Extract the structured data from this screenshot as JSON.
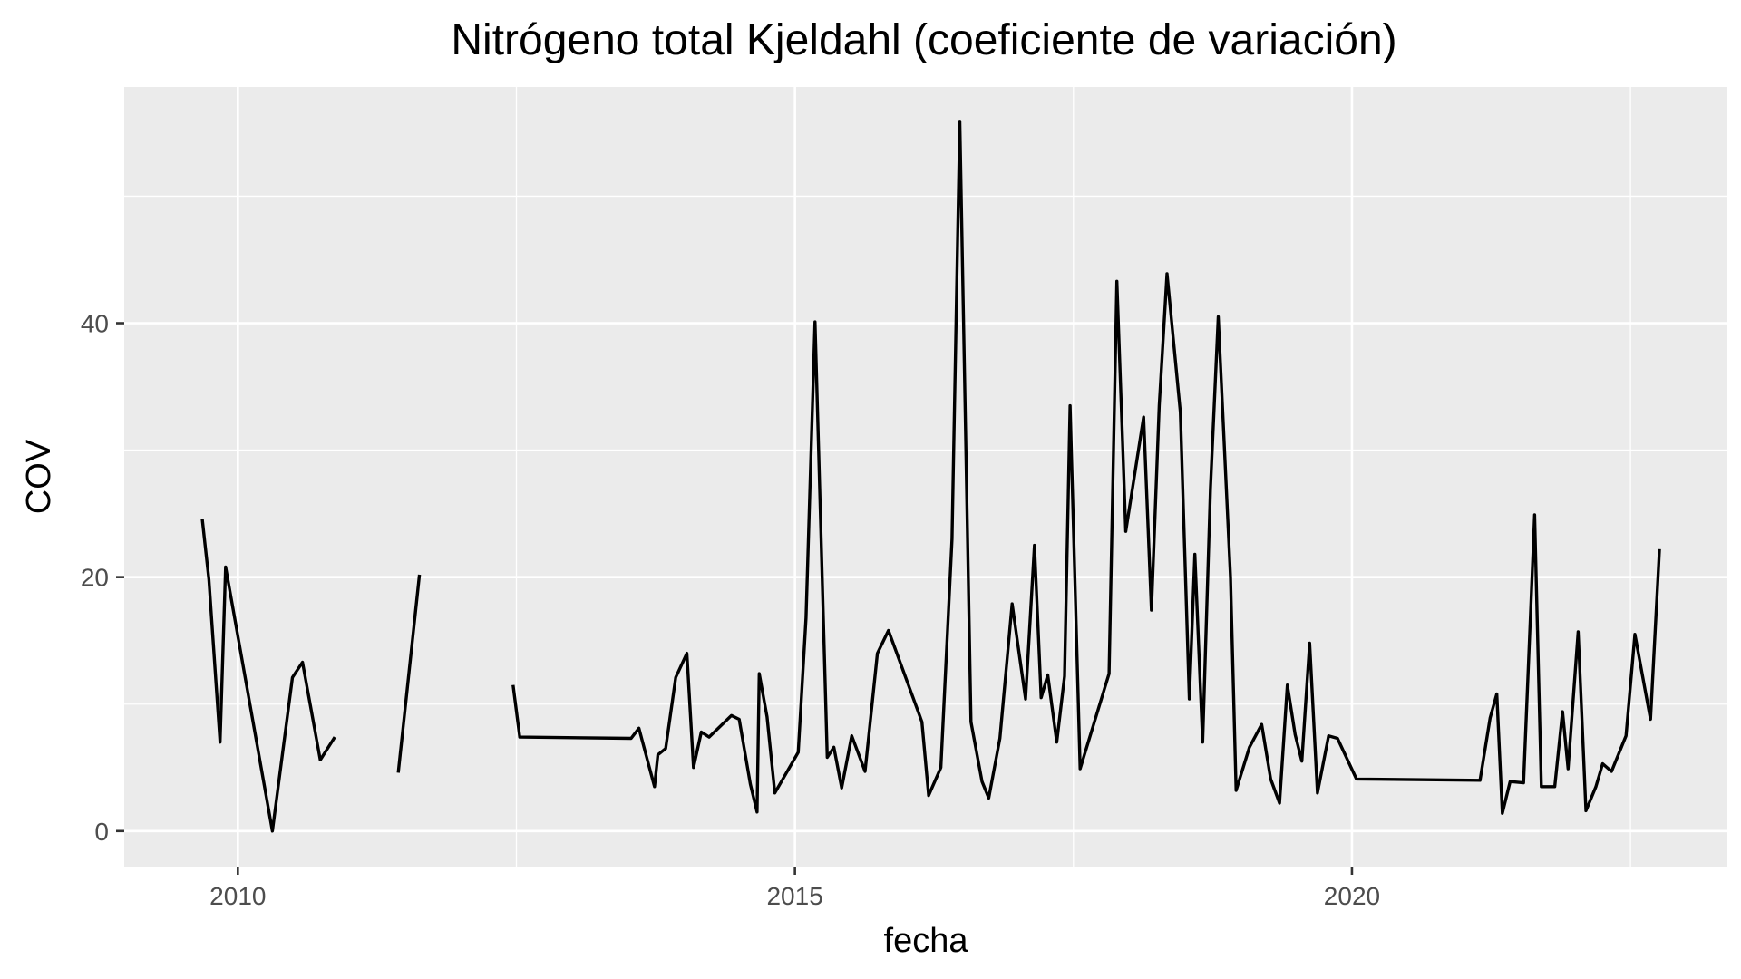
{
  "chart_data": {
    "type": "line",
    "title": "Nitrógeno total Kjeldahl (coeficiente de variación)",
    "xlabel": "fecha",
    "ylabel": "COV",
    "x_ticks": [
      2010,
      2015,
      2020
    ],
    "x_tick_labels": [
      "2010",
      "2015",
      "2020"
    ],
    "y_ticks": [
      0,
      20,
      40
    ],
    "y_tick_labels": [
      "0",
      "20",
      "40"
    ],
    "xlim": [
      2008.98,
      2023.37
    ],
    "ylim": [
      -2.8,
      58.6
    ],
    "grid": true,
    "series": [
      {
        "color": "#000000",
        "segments": [
          {
            "x": [
              2009.68,
              2009.74,
              2009.84,
              2009.89,
              2010.31,
              2010.49,
              2010.58,
              2010.74,
              2010.87
            ],
            "y": [
              24.6,
              19.8,
              7.0,
              20.8,
              0.0,
              12.1,
              13.3,
              5.6,
              7.4
            ]
          },
          {
            "x": [
              2011.44,
              2011.63
            ],
            "y": [
              4.6,
              20.2
            ]
          },
          {
            "x": [
              2012.47,
              2012.53,
              2013.53,
              2013.6,
              2013.74,
              2013.77,
              2013.84,
              2013.93,
              2014.03,
              2014.09,
              2014.16,
              2014.23,
              2014.43,
              2014.5,
              2014.6,
              2014.66,
              2014.68,
              2014.75,
              2014.82,
              2015.03,
              2015.1,
              2015.18,
              2015.29,
              2015.35,
              2015.42,
              2015.51,
              2015.63,
              2015.74,
              2015.84,
              2016.14,
              2016.2,
              2016.31,
              2016.41,
              2016.48,
              2016.58,
              2016.68,
              2016.74,
              2016.84,
              2016.95,
              2017.07,
              2017.15,
              2017.21,
              2017.27,
              2017.35,
              2017.42,
              2017.47,
              2017.56,
              2017.82,
              2017.89,
              2017.97,
              2018.13,
              2018.2,
              2018.27,
              2018.34,
              2018.46,
              2018.54,
              2018.59,
              2018.66,
              2018.73,
              2018.8,
              2018.91,
              2018.96,
              2019.08,
              2019.19,
              2019.27,
              2019.35,
              2019.42,
              2019.49,
              2019.55,
              2019.62,
              2019.69,
              2019.79,
              2019.87,
              2020.04,
              2021.15,
              2021.24,
              2021.3,
              2021.35,
              2021.42,
              2021.54,
              2021.64,
              2021.7,
              2021.82,
              2021.89,
              2021.94,
              2022.03,
              2022.1,
              2022.19,
              2022.25,
              2022.33,
              2022.46,
              2022.54,
              2022.68,
              2022.76
            ],
            "y": [
              11.5,
              7.4,
              7.3,
              8.1,
              3.5,
              6.0,
              6.5,
              12.1,
              14.0,
              5.0,
              7.8,
              7.4,
              9.1,
              8.8,
              3.7,
              1.5,
              12.4,
              9.0,
              3.0,
              6.2,
              16.8,
              40.1,
              5.8,
              6.6,
              3.4,
              7.5,
              4.7,
              14.0,
              15.8,
              8.6,
              2.8,
              5.0,
              23.0,
              55.9,
              8.6,
              3.9,
              2.6,
              7.3,
              17.9,
              10.4,
              22.5,
              10.5,
              12.3,
              7.0,
              12.2,
              33.5,
              4.9,
              12.4,
              43.3,
              23.6,
              32.6,
              17.4,
              33.5,
              43.9,
              33.0,
              10.4,
              21.8,
              7.0,
              27.0,
              40.5,
              20.0,
              3.2,
              6.6,
              8.4,
              4.1,
              2.2,
              11.5,
              7.6,
              5.5,
              14.8,
              3.0,
              7.5,
              7.3,
              4.1,
              4.0,
              8.9,
              10.8,
              1.4,
              3.9,
              3.8,
              24.9,
              3.5,
              3.5,
              9.4,
              4.9,
              15.7,
              1.6,
              3.5,
              5.3,
              4.7,
              7.5,
              15.5,
              8.8,
              22.2
            ]
          }
        ]
      }
    ]
  }
}
